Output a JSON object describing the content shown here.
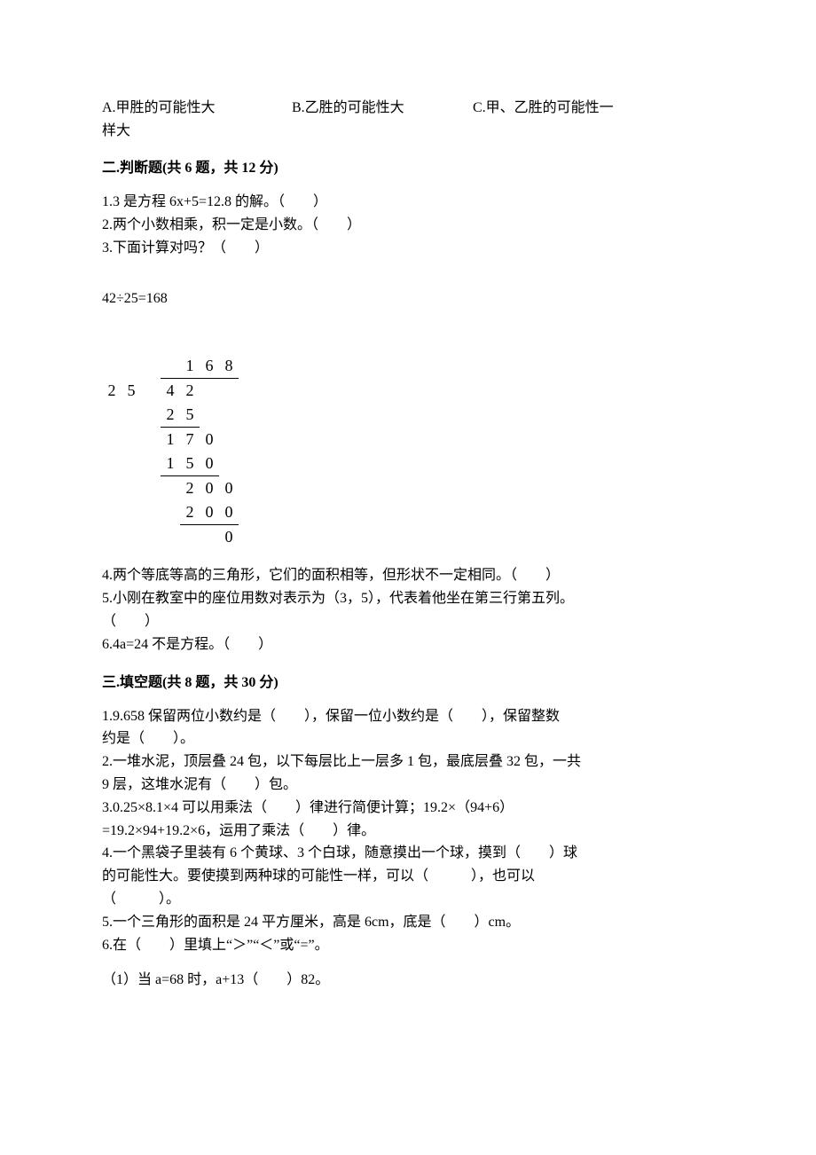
{
  "top_options": {
    "a": "A.甲胜的可能性大",
    "b": "B.乙胜的可能性大",
    "c": "C.甲、乙胜的可能性一",
    "c2": "样大"
  },
  "section2": {
    "header": "二.判断题(共 6 题，共 12 分)",
    "q1": "1.3 是方程 6x+5=12.8 的解。（　　）",
    "q2": "2.两个小数相乘，积一定是小数。（　　）",
    "q3": "3.下面计算对吗？（　　）",
    "eq": "42÷25=168",
    "q4": "4.两个等底等高的三角形，它们的面积相等，但形状不一定相同。（　　）",
    "q5a": "5.小刚在教室中的座位用数对表示为（3，5），代表着他坐在第三行第五列。",
    "q5b": "（　　）",
    "q6": "6.4a=24 不是方程。（　　）"
  },
  "section3": {
    "header": "三.填空题(共 8 题，共 30 分)",
    "q1a": "1.9.658 保留两位小数约是（　　），保留一位小数约是（　　），保留整数",
    "q1b": "约是（　　）。",
    "q2a": "2.一堆水泥，顶层叠 24 包，以下每层比上一层多 1 包，最底层叠 32 包，一共",
    "q2b": "9 层，这堆水泥有（　　）包。",
    "q3a": "3.0.25×8.1×4 可以用乘法（　　）律进行简便计算；19.2×（94+6）",
    "q3b": "=19.2×94+19.2×6，运用了乘法（　　）律。",
    "q4a": "4.一个黑袋子里装有 6 个黄球、3 个白球，随意摸出一个球，摸到（　　）球",
    "q4b": "的可能性大。要使摸到两种球的可能性一样，可以（　　　），也可以",
    "q4c": "（　　　）。",
    "q5": "5.一个三角形的面积是 24 平方厘米，高是 6cm，底是（　　）cm。",
    "q6": "6.在（　　）里填上“＞”“＜”或“=”。",
    "q6_1": "（1）当 a=68 时，a+13（　　）82。"
  },
  "long_division": {
    "r0": [
      "",
      "",
      "",
      "",
      "1",
      "6",
      "8"
    ],
    "r1": [
      "2",
      "5",
      "",
      "4",
      "2",
      "",
      ""
    ],
    "r2": [
      "",
      "",
      "",
      "2",
      "5",
      "",
      ""
    ],
    "r3": [
      "",
      "",
      "",
      "1",
      "7",
      "0",
      ""
    ],
    "r4": [
      "",
      "",
      "",
      "1",
      "5",
      "0",
      ""
    ],
    "r5": [
      "",
      "",
      "",
      "",
      "2",
      "0",
      "0"
    ],
    "r6": [
      "",
      "",
      "",
      "",
      "2",
      "0",
      "0"
    ],
    "r7": [
      "",
      "",
      "",
      "",
      "",
      "",
      "0"
    ]
  }
}
